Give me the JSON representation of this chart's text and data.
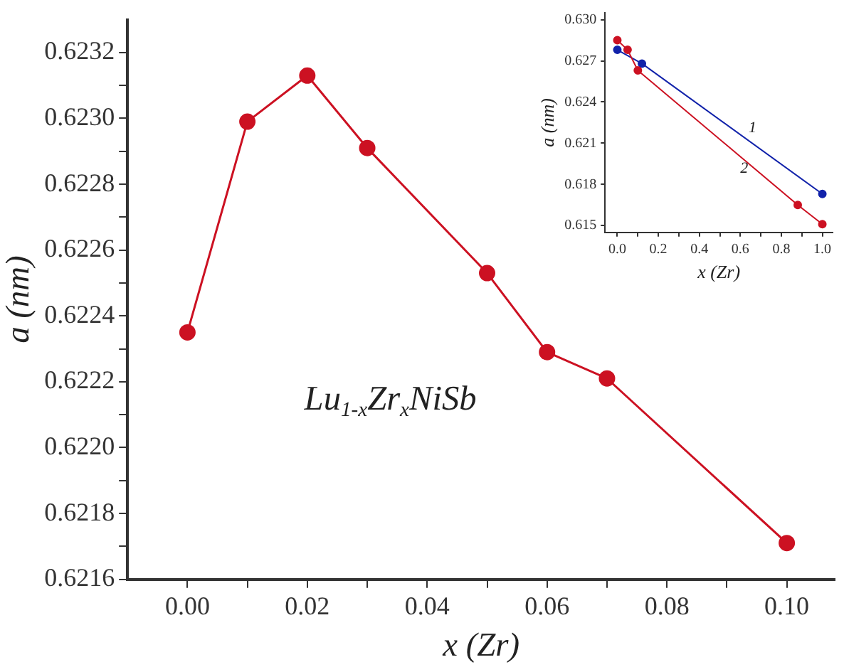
{
  "chart_data": [
    {
      "type": "line",
      "xlabel": "x (Zr)",
      "ylabel": "a (nm)",
      "x": [
        0,
        0.01,
        0.02,
        0.03,
        0.05,
        0.06,
        0.07,
        0.1
      ],
      "series": [
        {
          "color": "#cc1122",
          "values": [
            0.62235,
            0.62299,
            0.62313,
            0.62291,
            0.62253,
            0.62229,
            0.62221,
            0.62171
          ]
        }
      ],
      "xlim": [
        -0.01,
        0.108
      ],
      "ylim": [
        0.6216,
        0.6233
      ],
      "xticks": [
        {
          "value": 0,
          "label": "0.00"
        },
        {
          "value": 0.01,
          "label": null
        },
        {
          "value": 0.02,
          "label": "0.02"
        },
        {
          "value": 0.03,
          "label": null
        },
        {
          "value": 0.04,
          "label": "0.04"
        },
        {
          "value": 0.05,
          "label": null
        },
        {
          "value": 0.06,
          "label": "0.06"
        },
        {
          "value": 0.07,
          "label": null
        },
        {
          "value": 0.08,
          "label": "0.08"
        },
        {
          "value": 0.09,
          "label": null
        },
        {
          "value": 0.1,
          "label": "0.10"
        }
      ],
      "yticks": [
        {
          "value": 0.6216,
          "label": "0.6216"
        },
        {
          "value": 0.6217,
          "label": null
        },
        {
          "value": 0.6218,
          "label": "0.6218"
        },
        {
          "value": 0.6219,
          "label": null
        },
        {
          "value": 0.622,
          "label": "0.6220"
        },
        {
          "value": 0.6221,
          "label": null
        },
        {
          "value": 0.6222,
          "label": "0.6222"
        },
        {
          "value": 0.6223,
          "label": null
        },
        {
          "value": 0.6224,
          "label": "0.6224"
        },
        {
          "value": 0.6225,
          "label": null
        },
        {
          "value": 0.6226,
          "label": "0.6226"
        },
        {
          "value": 0.6227,
          "label": null
        },
        {
          "value": 0.6228,
          "label": "0.6228"
        },
        {
          "value": 0.6229,
          "label": null
        },
        {
          "value": 0.623,
          "label": "0.6230"
        },
        {
          "value": 0.6231,
          "label": null
        },
        {
          "value": 0.6232,
          "label": "0.6232"
        }
      ],
      "annotations": [
        "Lu$_{1-x}$Zr$_{x}$NiSb"
      ],
      "marker": "circle",
      "line_style": "solid",
      "grid": false,
      "legend": false
    },
    {
      "type": "line",
      "xlabel": "x (Zr)",
      "ylabel": "a (nm)",
      "series": [
        {
          "color": "#cc1122",
          "x": [
            0,
            0.05,
            0.1,
            0.88,
            1.0
          ],
          "values": [
            0.6285,
            0.6278,
            0.6263,
            0.6165,
            0.6151
          ]
        },
        {
          "color": "#1122aa",
          "x": [
            0,
            0.12,
            1.0
          ],
          "values": [
            0.6278,
            0.6268,
            0.6173
          ]
        }
      ],
      "xlim": [
        -0.06,
        1.05
      ],
      "ylim": [
        0.6145,
        0.6305
      ],
      "xticks": [
        {
          "value": 0,
          "label": "0.0"
        },
        {
          "value": 0.1,
          "label": null
        },
        {
          "value": 0.2,
          "label": "0.2"
        },
        {
          "value": 0.3,
          "label": null
        },
        {
          "value": 0.4,
          "label": "0.4"
        },
        {
          "value": 0.5,
          "label": null
        },
        {
          "value": 0.6,
          "label": "0.6"
        },
        {
          "value": 0.7,
          "label": null
        },
        {
          "value": 0.8,
          "label": "0.8"
        },
        {
          "value": 0.9,
          "label": null
        },
        {
          "value": 1.0,
          "label": "1.0"
        }
      ],
      "yticks": [
        {
          "value": 0.615,
          "label": "0.615"
        },
        {
          "value": 0.618,
          "label": "0.618"
        },
        {
          "value": 0.621,
          "label": "0.621"
        },
        {
          "value": 0.624,
          "label": "0.624"
        },
        {
          "value": 0.627,
          "label": "0.627"
        },
        {
          "value": 0.63,
          "label": "0.630"
        }
      ],
      "annotations": [
        {
          "text": "1",
          "x": 0.64,
          "y": 0.6212
        },
        {
          "text": "2",
          "x": 0.6,
          "y": 0.62
        }
      ],
      "marker": "circle",
      "line_style": "solid",
      "grid": false,
      "legend": false
    }
  ]
}
